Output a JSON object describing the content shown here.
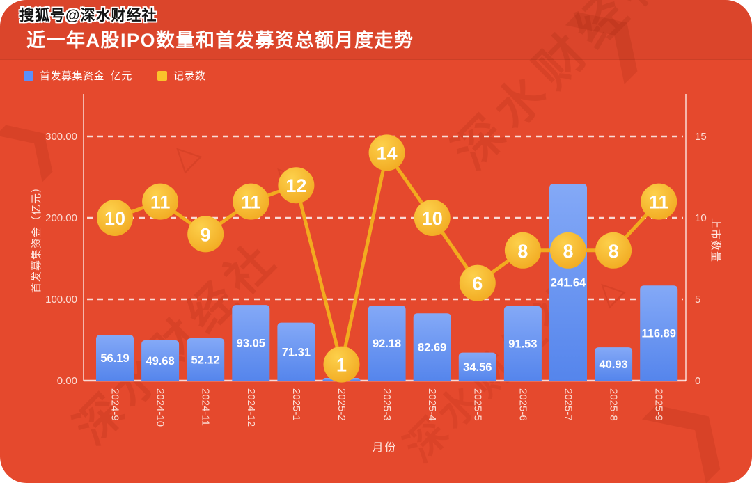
{
  "header": {
    "account_badge": "搜狐号@深水财经社",
    "title": "近一年A股IPO数量和首发募资总额月度走势"
  },
  "colors": {
    "page_background": "#ffffff",
    "card_background": "#e5492d"
  },
  "watermark": {
    "text": "深水财经社"
  },
  "legend": [
    {
      "label": "首发募集资金_亿元",
      "color": "#5b8ff9"
    },
    {
      "label": "记录数",
      "color": "#fac42b"
    }
  ],
  "chart_data": {
    "type": "bar",
    "categories": [
      "2024-9",
      "2024-10",
      "2024-11",
      "2024-12",
      "2025-1",
      "2025-2",
      "2025-3",
      "2025-4",
      "2025-5",
      "2025-6",
      "2025-7",
      "2025-8",
      "2025-9"
    ],
    "series": [
      {
        "name": "首发募集资金_亿元",
        "type": "bar",
        "y_axis": "left",
        "values": [
          56.19,
          49.68,
          52.12,
          93.05,
          71.31,
          null,
          92.18,
          82.69,
          34.56,
          91.53,
          241.64,
          40.93,
          116.89
        ],
        "labels": [
          "56.19",
          "49.68",
          "52.12",
          "93.05",
          "71.31",
          "",
          "92.18",
          "82.69",
          "34.56",
          "91.53",
          "241.64",
          "40.93",
          "116.89"
        ]
      },
      {
        "name": "记录数",
        "type": "line",
        "y_axis": "right",
        "values": [
          10,
          11,
          9,
          11,
          12,
          1,
          14,
          10,
          6,
          8,
          8,
          8,
          11
        ]
      }
    ],
    "xlabel": "月份",
    "ylabel_left": "首发募集资金（亿元）",
    "ylabel_right": "上市数量",
    "yticks_left": {
      "labels": [
        "0.00",
        "100.00",
        "200.00",
        "300.00"
      ],
      "values": [
        0,
        100,
        200,
        300
      ]
    },
    "yticks_right": {
      "labels": [
        "0",
        "5",
        "10",
        "15"
      ],
      "values": [
        0,
        5,
        10,
        15
      ]
    },
    "ylim_left": [
      0,
      300
    ],
    "ylim_right": [
      0,
      15
    ],
    "grid": "horizontal-dashed",
    "legend_position": "top-left",
    "colors": {
      "bar_top": "#84a9f7",
      "bar_bottom": "#5585ec",
      "line": "#f2ab1f",
      "marker_top": "#fdd04b",
      "marker_bottom": "#f0a61d",
      "axis_line": "rgba(255,255,255,0.6)",
      "grid_line": "rgba(255,255,255,0.8)",
      "tick_text": "#fbded6",
      "axis_title_text": "#ffe9e3",
      "value_label_text": "#ffffff",
      "marker_text": "#ffffff"
    }
  }
}
